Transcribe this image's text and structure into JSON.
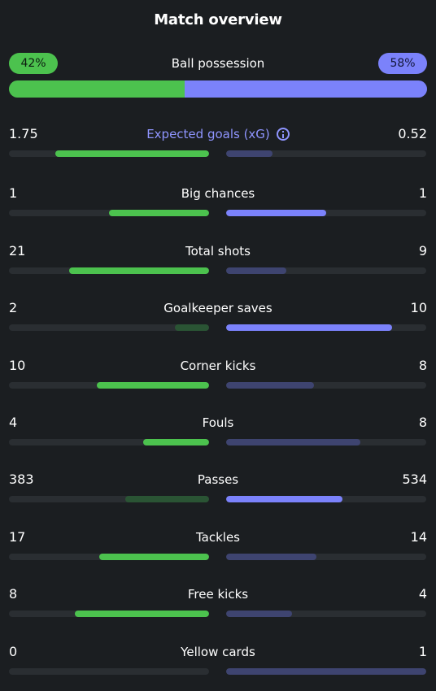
{
  "header": {
    "title": "Match overview"
  },
  "possession": {
    "label": "Ball possession",
    "home_label": "42%",
    "away_label": "58%",
    "home_pct": 42,
    "away_pct": 58
  },
  "colors": {
    "home_strong": "#4cc24e",
    "home_weak": "#2a5434",
    "away_strong": "#7b82fb",
    "away_weak": "#3e4470",
    "track": "#2a2e32",
    "accent": "#8f95ff"
  },
  "stats": [
    {
      "label": "Expected goals (xG)",
      "home": "1.75",
      "away": "0.52",
      "home_fill": 0.77,
      "away_fill": 0.23,
      "home_strong": true,
      "away_strong": false,
      "accent": true,
      "icon": "info-icon"
    },
    {
      "label": "Big chances",
      "home": "1",
      "away": "1",
      "home_fill": 0.5,
      "away_fill": 0.5,
      "home_strong": true,
      "away_strong": true
    },
    {
      "label": "Total shots",
      "home": "21",
      "away": "9",
      "home_fill": 0.7,
      "away_fill": 0.3,
      "home_strong": true,
      "away_strong": false
    },
    {
      "label": "Goalkeeper saves",
      "home": "2",
      "away": "10",
      "home_fill": 0.17,
      "away_fill": 0.83,
      "home_strong": false,
      "away_strong": true
    },
    {
      "label": "Corner kicks",
      "home": "10",
      "away": "8",
      "home_fill": 0.56,
      "away_fill": 0.44,
      "home_strong": true,
      "away_strong": false
    },
    {
      "label": "Fouls",
      "home": "4",
      "away": "8",
      "home_fill": 0.33,
      "away_fill": 0.67,
      "home_strong": true,
      "away_strong": false
    },
    {
      "label": "Passes",
      "home": "383",
      "away": "534",
      "home_fill": 0.42,
      "away_fill": 0.58,
      "home_strong": false,
      "away_strong": true
    },
    {
      "label": "Tackles",
      "home": "17",
      "away": "14",
      "home_fill": 0.55,
      "away_fill": 0.45,
      "home_strong": true,
      "away_strong": false
    },
    {
      "label": "Free kicks",
      "home": "8",
      "away": "4",
      "home_fill": 0.67,
      "away_fill": 0.33,
      "home_strong": true,
      "away_strong": false
    },
    {
      "label": "Yellow cards",
      "home": "0",
      "away": "1",
      "home_fill": 0.0,
      "away_fill": 1.0,
      "home_strong": false,
      "away_strong": false
    }
  ]
}
